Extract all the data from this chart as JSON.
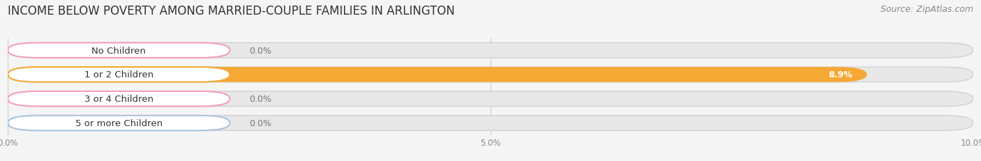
{
  "title": "INCOME BELOW POVERTY AMONG MARRIED-COUPLE FAMILIES IN ARLINGTON",
  "source": "Source: ZipAtlas.com",
  "categories": [
    "No Children",
    "1 or 2 Children",
    "3 or 4 Children",
    "5 or more Children"
  ],
  "values": [
    0.0,
    8.9,
    0.0,
    0.0
  ],
  "bar_colors": [
    "#f4a0b5",
    "#f5a833",
    "#f4a0b5",
    "#a8c4e0"
  ],
  "track_color": "#e8e8e8",
  "track_border_color": "#d0d0d0",
  "xlim": [
    0,
    10.0
  ],
  "xticks": [
    0.0,
    5.0,
    10.0
  ],
  "xticklabels": [
    "0.0%",
    "5.0%",
    "10.0%"
  ],
  "title_fontsize": 12,
  "source_fontsize": 9,
  "label_fontsize": 9.5,
  "value_fontsize": 9,
  "bar_height": 0.62,
  "background_color": "#f5f5f5",
  "value_color_inside": "#ffffff",
  "value_color_outside": "#777777"
}
